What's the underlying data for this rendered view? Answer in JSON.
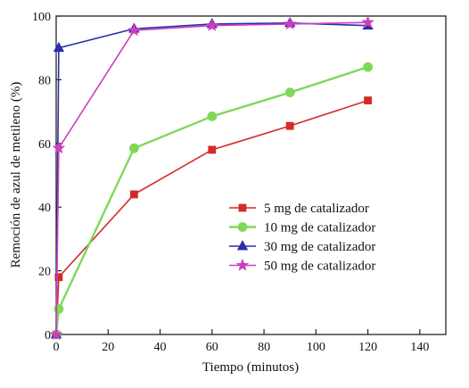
{
  "chart_data": {
    "type": "line",
    "xlabel": "Tiempo (minutos)",
    "ylabel": "Remoción de azul de metileno (%)",
    "xlim": [
      0,
      150
    ],
    "ylim": [
      0,
      100
    ],
    "xticks": [
      0,
      20,
      40,
      60,
      80,
      100,
      120,
      140
    ],
    "yticks": [
      0,
      20,
      40,
      60,
      80,
      100
    ],
    "grid": false,
    "legend_position": "center-right",
    "series": [
      {
        "name": "5 mg de catalizador",
        "color": "#d42a2a",
        "marker": "square",
        "x": [
          0,
          1,
          30,
          60,
          90,
          120
        ],
        "y": [
          0,
          18,
          44,
          58,
          65.5,
          73.5
        ]
      },
      {
        "name": "10 mg de catalizador",
        "color": "#7ed957",
        "marker": "circle",
        "x": [
          0,
          1,
          30,
          60,
          90,
          120
        ],
        "y": [
          0,
          8,
          58.5,
          68.5,
          76,
          84
        ]
      },
      {
        "name": "30 mg de catalizador",
        "color": "#2a2fa8",
        "marker": "triangle",
        "x": [
          0,
          1,
          30,
          60,
          90,
          120
        ],
        "y": [
          0,
          90,
          96,
          97.5,
          97.8,
          97
        ]
      },
      {
        "name": "50 mg de catalizador",
        "color": "#cc3fbf",
        "marker": "star",
        "x": [
          0,
          1,
          30,
          60,
          90,
          120
        ],
        "y": [
          0,
          58.5,
          95.5,
          97,
          97.5,
          98
        ]
      }
    ]
  }
}
